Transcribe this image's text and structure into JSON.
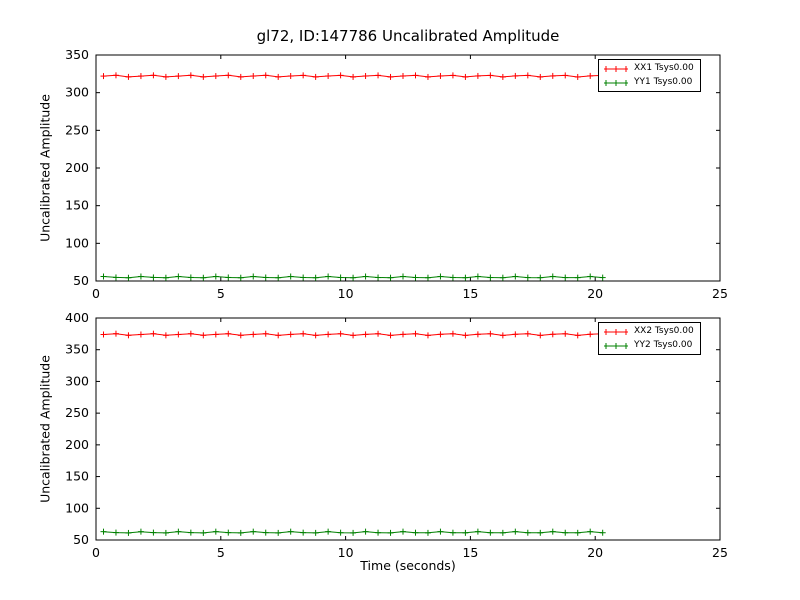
{
  "figure": {
    "title": "gl72, ID:147786 Uncalibrated Amplitude",
    "background": "#ffffff",
    "axis_color": "#000000"
  },
  "chart_data": [
    {
      "type": "line",
      "title": "",
      "xlabel": "",
      "ylabel": "Uncalibrated Amplitude",
      "xlim": [
        0,
        25
      ],
      "ylim": [
        50,
        350
      ],
      "xticks": [
        0,
        5,
        10,
        15,
        20,
        25
      ],
      "yticks": [
        50,
        100,
        150,
        200,
        250,
        300,
        350
      ],
      "grid": false,
      "legend_position": "upper-right",
      "series": [
        {
          "name": "XX1 Tsys0.00",
          "color": "#ff0000",
          "marker": "+",
          "x_start": 0.3,
          "x_end": 20.3,
          "n_points": 41,
          "y_value": 322,
          "jitter": 1.2
        },
        {
          "name": "YY1 Tsys0.00",
          "color": "#008000",
          "marker": "+",
          "x_start": 0.3,
          "x_end": 20.3,
          "n_points": 41,
          "y_value": 55,
          "jitter": 1.0
        }
      ]
    },
    {
      "type": "line",
      "title": "",
      "xlabel": "Time (seconds)",
      "ylabel": "Uncalibrated Amplitude",
      "xlim": [
        0,
        25
      ],
      "ylim": [
        50,
        400
      ],
      "xticks": [
        0,
        5,
        10,
        15,
        20,
        25
      ],
      "yticks": [
        50,
        100,
        150,
        200,
        250,
        300,
        350,
        400
      ],
      "grid": false,
      "legend_position": "upper-right",
      "series": [
        {
          "name": "XX2 Tsys0.00",
          "color": "#ff0000",
          "marker": "+",
          "x_start": 0.3,
          "x_end": 20.3,
          "n_points": 41,
          "y_value": 374,
          "jitter": 1.5
        },
        {
          "name": "YY2 Tsys0.00",
          "color": "#008000",
          "marker": "+",
          "x_start": 0.3,
          "x_end": 20.3,
          "n_points": 41,
          "y_value": 62,
          "jitter": 1.2
        }
      ]
    }
  ]
}
